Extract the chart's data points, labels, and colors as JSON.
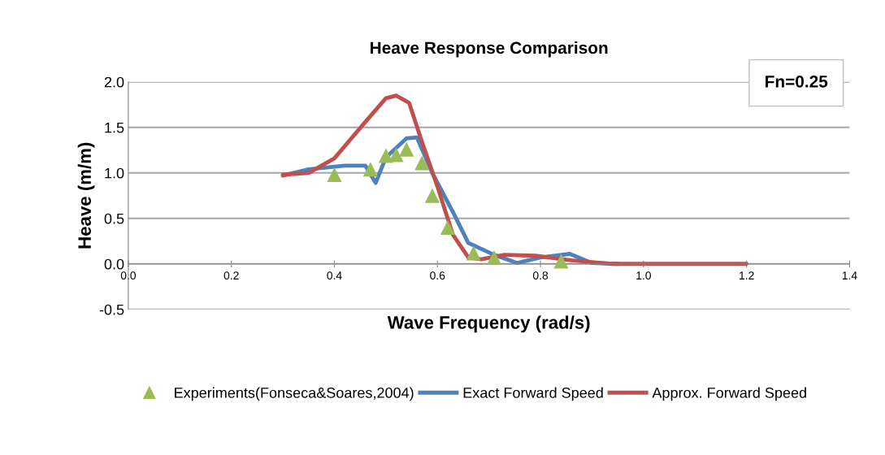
{
  "chart_data": {
    "type": "line",
    "title": "Heave Response Comparison",
    "xlabel": "Wave Frequency (rad/s)",
    "ylabel": "Heave (m/m)",
    "xlim": [
      0,
      1.4
    ],
    "xticks": [
      {
        "value": 0,
        "label": "0.0"
      },
      0.2,
      0.4,
      0.6,
      0.8,
      {
        "value": 1,
        "label": "1.0"
      },
      1.2,
      1.4
    ],
    "ylim": [
      -0.5,
      2
    ],
    "yticks": [
      -0.5,
      {
        "value": 0,
        "label": "0.0"
      },
      0.5,
      {
        "value": 1,
        "label": "1.0"
      },
      1.5,
      {
        "value": 2,
        "label": "2.0"
      }
    ],
    "grid": "y",
    "legend": "bottom",
    "annotations": [
      "Fn=0.25"
    ],
    "series": [
      {
        "name": "Experiments(Fonseca&Soares,2004)",
        "type": "scatter",
        "marker": "triangle",
        "color": "#9bbb59",
        "x": [
          0.4,
          0.47,
          0.5,
          0.52,
          0.54,
          0.57,
          0.59,
          0.62,
          0.67,
          0.71,
          0.84
        ],
        "values": [
          0.98,
          1.04,
          1.19,
          1.2,
          1.26,
          1.11,
          0.75,
          0.4,
          0.12,
          0.07,
          0.03
        ]
      },
      {
        "name": "Exact Forward Speed",
        "color": "#4f81bd",
        "x": [
          0.3,
          0.35,
          0.42,
          0.46,
          0.48,
          0.5,
          0.54,
          0.56,
          0.59,
          0.63,
          0.66,
          0.71,
          0.755,
          0.8,
          0.857,
          0.9,
          0.95
        ],
        "values": [
          0.97,
          1.04,
          1.08,
          1.08,
          0.89,
          1.17,
          1.38,
          1.39,
          1.0,
          0.57,
          0.23,
          0.1,
          0.01,
          0.07,
          0.11,
          0.01,
          0
        ]
      },
      {
        "name": "Approx. Forward Speed",
        "color": "#c0504d",
        "x": [
          0.3,
          0.35,
          0.4,
          0.46,
          0.5,
          0.52,
          0.545,
          0.57,
          0.6,
          0.63,
          0.66,
          0.685,
          0.73,
          0.79,
          0.86,
          0.94,
          1.0,
          1.1,
          1.2
        ],
        "values": [
          0.98,
          1.0,
          1.16,
          1.56,
          1.82,
          1.85,
          1.77,
          1.34,
          0.85,
          0.32,
          0.07,
          0.05,
          0.1,
          0.09,
          0.04,
          0,
          0,
          0,
          0
        ]
      }
    ]
  }
}
